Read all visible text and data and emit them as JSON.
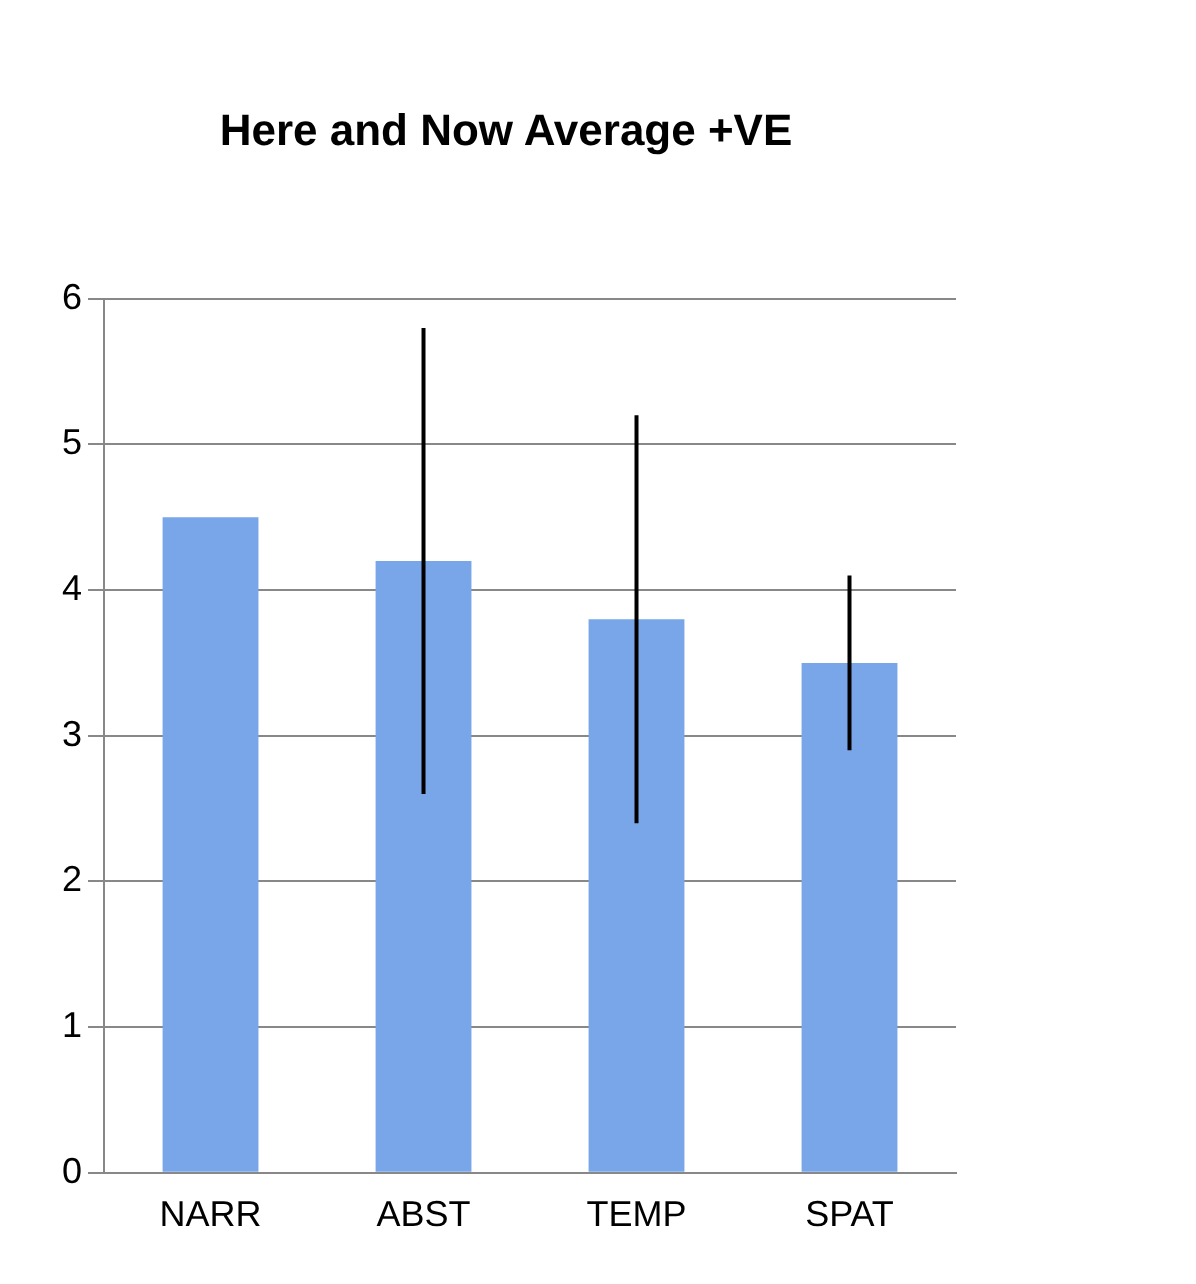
{
  "chart_data": {
    "type": "bar",
    "title": "Here and Now Average +VE",
    "categories": [
      "NARR",
      "ABST",
      "TEMP",
      "SPAT"
    ],
    "values": [
      4.5,
      4.2,
      3.8,
      3.5
    ],
    "errors": [
      0,
      1.6,
      1.4,
      0.6
    ],
    "color": "#78a6e8",
    "ylim": [
      0,
      6
    ],
    "yticks": [
      0,
      1,
      2,
      3,
      4,
      5,
      6
    ],
    "grid": "y"
  }
}
